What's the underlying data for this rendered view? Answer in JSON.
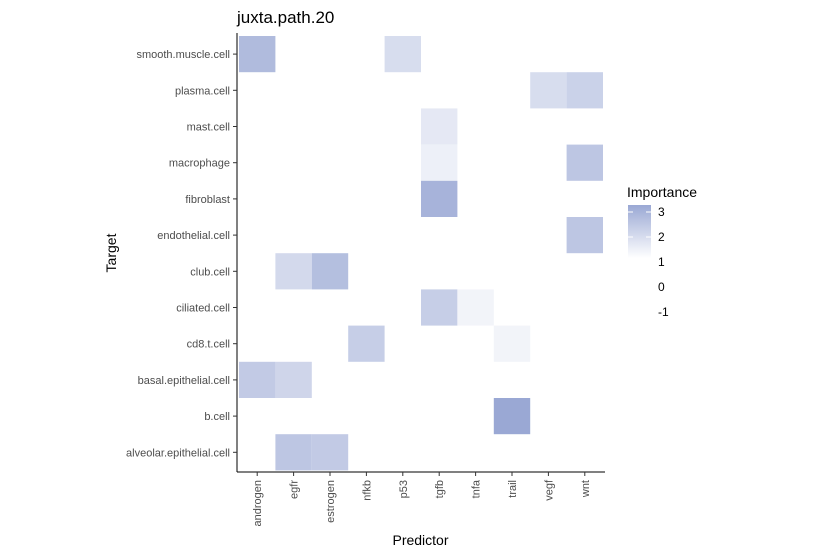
{
  "chart_data": {
    "type": "heatmap",
    "title": "juxta.path.20",
    "xlabel": "Predictor",
    "ylabel": "Target",
    "x_categories": [
      "androgen",
      "egfr",
      "estrogen",
      "nfkb",
      "p53",
      "tgfb",
      "tnfa",
      "trail",
      "vegf",
      "wnt"
    ],
    "y_categories": [
      "smooth.muscle.cell",
      "plasma.cell",
      "mast.cell",
      "macrophage",
      "fibroblast",
      "endothelial.cell",
      "club.cell",
      "ciliated.cell",
      "cd8.t.cell",
      "basal.epithelial.cell",
      "b.cell",
      "alveolar.epithelial.cell"
    ],
    "cells": [
      {
        "x": "androgen",
        "y": "smooth.muscle.cell",
        "value": 2.8
      },
      {
        "x": "p53",
        "y": "smooth.muscle.cell",
        "value": 1.9
      },
      {
        "x": "vegf",
        "y": "plasma.cell",
        "value": 1.9
      },
      {
        "x": "wnt",
        "y": "plasma.cell",
        "value": 2.2
      },
      {
        "x": "tgfb",
        "y": "mast.cell",
        "value": 1.6
      },
      {
        "x": "tgfb",
        "y": "macrophage",
        "value": 1.4
      },
      {
        "x": "wnt",
        "y": "macrophage",
        "value": 2.5
      },
      {
        "x": "tgfb",
        "y": "fibroblast",
        "value": 3.0
      },
      {
        "x": "wnt",
        "y": "endothelial.cell",
        "value": 2.5
      },
      {
        "x": "egfr",
        "y": "club.cell",
        "value": 2.0
      },
      {
        "x": "estrogen",
        "y": "club.cell",
        "value": 2.7
      },
      {
        "x": "tgfb",
        "y": "ciliated.cell",
        "value": 2.3
      },
      {
        "x": "tnfa",
        "y": "ciliated.cell",
        "value": 1.3
      },
      {
        "x": "nfkb",
        "y": "cd8.t.cell",
        "value": 2.3
      },
      {
        "x": "trail",
        "y": "cd8.t.cell",
        "value": 1.3
      },
      {
        "x": "androgen",
        "y": "basal.epithelial.cell",
        "value": 2.4
      },
      {
        "x": "egfr",
        "y": "basal.epithelial.cell",
        "value": 2.1
      },
      {
        "x": "trail",
        "y": "b.cell",
        "value": 3.3
      },
      {
        "x": "egfr",
        "y": "alveolar.epithelial.cell",
        "value": 2.5
      },
      {
        "x": "estrogen",
        "y": "alveolar.epithelial.cell",
        "value": 2.4
      }
    ],
    "legend": {
      "title": "Importance",
      "breaks": [
        "3",
        "2",
        "1",
        "0",
        "-1"
      ],
      "placement": "right",
      "color_low": "#ffffff",
      "color_high": "#9aa8d4"
    },
    "value_range": [
      1,
      3.3
    ],
    "grid": false
  }
}
